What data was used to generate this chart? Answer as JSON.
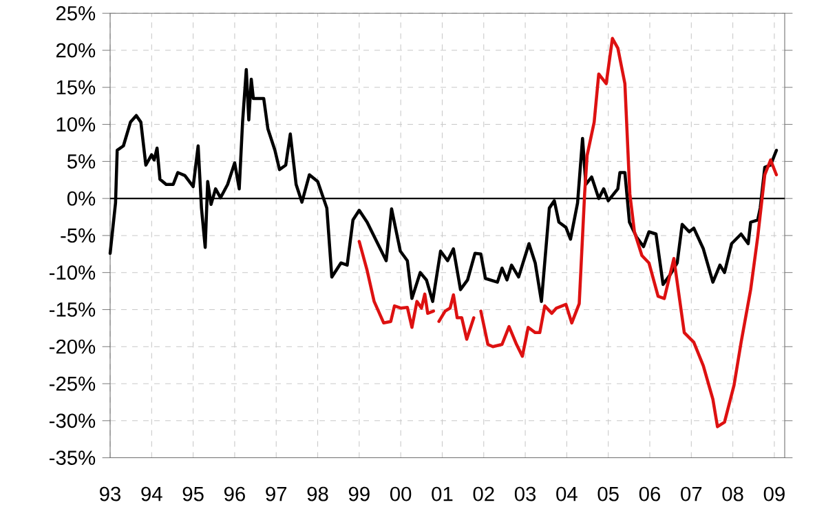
{
  "chart_data": {
    "type": "line",
    "xlim": [
      1993,
      2009.25
    ],
    "ylim": [
      -35,
      25
    ],
    "grid": true,
    "line_style": "solid",
    "xticks": [
      {
        "value": 1993,
        "label": "93"
      },
      {
        "value": 1994,
        "label": "94"
      },
      {
        "value": 1995,
        "label": "95"
      },
      {
        "value": 1996,
        "label": "96"
      },
      {
        "value": 1997,
        "label": "97"
      },
      {
        "value": 1998,
        "label": "98"
      },
      {
        "value": 1999,
        "label": "99"
      },
      {
        "value": 2000,
        "label": "00"
      },
      {
        "value": 2001,
        "label": "01"
      },
      {
        "value": 2002,
        "label": "02"
      },
      {
        "value": 2003,
        "label": "03"
      },
      {
        "value": 2004,
        "label": "04"
      },
      {
        "value": 2005,
        "label": "05"
      },
      {
        "value": 2006,
        "label": "06"
      },
      {
        "value": 2007,
        "label": "07"
      },
      {
        "value": 2008,
        "label": "08"
      },
      {
        "value": 2009,
        "label": "09"
      }
    ],
    "yticks": [
      {
        "value": -35,
        "label": "-35%"
      },
      {
        "value": -30,
        "label": "-30%"
      },
      {
        "value": -25,
        "label": "-25%"
      },
      {
        "value": -20,
        "label": "-20%"
      },
      {
        "value": -15,
        "label": "-15%"
      },
      {
        "value": -10,
        "label": "-10%"
      },
      {
        "value": -5,
        "label": "-5%"
      },
      {
        "value": 0,
        "label": "0%"
      },
      {
        "value": 5,
        "label": "5%"
      },
      {
        "value": 10,
        "label": "10%"
      },
      {
        "value": 15,
        "label": "15%"
      },
      {
        "value": 20,
        "label": "20%"
      },
      {
        "value": 25,
        "label": "25%"
      }
    ],
    "ref_lines": [
      {
        "axis": "y",
        "value": 0,
        "color": "#000000"
      }
    ],
    "series": [
      {
        "color": "#000000",
        "x": [
          1993.0,
          1993.13,
          1993.17,
          1993.32,
          1993.49,
          1993.63,
          1993.74,
          1993.86,
          1994.0,
          1994.06,
          1994.13,
          1994.2,
          1994.35,
          1994.52,
          1994.63,
          1994.8,
          1995.0,
          1995.12,
          1995.2,
          1995.29,
          1995.35,
          1995.43,
          1995.54,
          1995.66,
          1995.83,
          1996.0,
          1996.11,
          1996.19,
          1996.28,
          1996.34,
          1996.4,
          1996.45,
          1996.57,
          1996.7,
          1996.8,
          1996.97,
          1997.08,
          1997.23,
          1997.34,
          1997.48,
          1997.62,
          1997.8,
          1998.0,
          1998.22,
          1998.34,
          1998.56,
          1998.71,
          1998.85,
          1999.0,
          1999.19,
          1999.42,
          1999.65,
          1999.78,
          1999.99,
          2000.16,
          2000.27,
          2000.47,
          2000.62,
          2000.77,
          2000.96,
          2001.13,
          2001.27,
          2001.44,
          2001.61,
          2001.79,
          2001.93,
          2002.04,
          2002.33,
          2002.44,
          2002.56,
          2002.67,
          2002.84,
          2003.09,
          2003.24,
          2003.39,
          2003.58,
          2003.7,
          2003.81,
          2003.98,
          2004.09,
          2004.26,
          2004.38,
          2004.46,
          2004.6,
          2004.77,
          2004.89,
          2005.0,
          2005.23,
          2005.28,
          2005.4,
          2005.51,
          2005.68,
          2005.85,
          2005.98,
          2006.15,
          2006.32,
          2006.49,
          2006.66,
          2006.78,
          2006.95,
          2007.06,
          2007.29,
          2007.52,
          2007.69,
          2007.8,
          2007.97,
          2008.2,
          2008.37,
          2008.43,
          2008.6,
          2008.66,
          2008.77,
          2008.91,
          2009.05
        ],
        "values": [
          -7.4,
          -0.6,
          6.5,
          7.1,
          10.3,
          11.2,
          10.3,
          4.5,
          5.9,
          5.2,
          6.8,
          2.6,
          1.9,
          1.9,
          3.5,
          3.1,
          1.6,
          7.1,
          -1.3,
          -6.6,
          2.3,
          -0.8,
          1.3,
          0.1,
          1.9,
          4.8,
          1.3,
          10.3,
          17.4,
          10.6,
          16.1,
          13.5,
          13.5,
          13.5,
          9.4,
          6.5,
          3.9,
          4.5,
          8.7,
          1.9,
          -0.5,
          3.2,
          2.3,
          -1.3,
          -10.6,
          -8.7,
          -9.0,
          -2.9,
          -1.6,
          -3.2,
          -5.8,
          -8.4,
          -1.4,
          -7.1,
          -8.4,
          -13.5,
          -10.0,
          -11.0,
          -13.9,
          -7.1,
          -8.4,
          -6.8,
          -12.3,
          -11.0,
          -7.4,
          -7.5,
          -10.8,
          -11.3,
          -9.4,
          -11.0,
          -9.0,
          -10.6,
          -6.1,
          -8.7,
          -13.9,
          -1.3,
          -0.3,
          -3.2,
          -3.9,
          -5.5,
          -0.6,
          8.1,
          1.9,
          2.9,
          0.0,
          1.3,
          -0.3,
          1.3,
          3.5,
          3.5,
          -3.2,
          -5.2,
          -6.5,
          -4.5,
          -4.8,
          -11.6,
          -10.3,
          -8.7,
          -3.5,
          -4.5,
          -4.0,
          -6.8,
          -11.3,
          -9.0,
          -10.0,
          -6.1,
          -4.8,
          -6.1,
          -3.2,
          -2.9,
          -1.3,
          4.2,
          4.5,
          6.5
        ]
      },
      {
        "color": "#dd1111",
        "x": [
          1999.0,
          1999.19,
          1999.36,
          1999.59,
          1999.76,
          1999.85,
          2000.01,
          2000.16,
          2000.27,
          2000.39,
          2000.5,
          2000.58,
          2000.65,
          2000.79,
          2000.85,
          2000.92,
          2001.07,
          2001.19,
          2001.27,
          2001.36,
          2001.47,
          2001.59,
          2001.76,
          2001.85,
          2001.93,
          2002.1,
          2002.22,
          2002.44,
          2002.61,
          2002.79,
          2002.93,
          2003.07,
          2003.24,
          2003.35,
          2003.47,
          2003.64,
          2003.75,
          2003.98,
          2004.12,
          2004.3,
          2004.43,
          2004.49,
          2004.66,
          2004.77,
          2004.95,
          2005.1,
          2005.23,
          2005.4,
          2005.52,
          2005.63,
          2005.81,
          2005.98,
          2006.2,
          2006.35,
          2006.58,
          2006.83,
          2007.06,
          2007.29,
          2007.52,
          2007.63,
          2007.8,
          2008.03,
          2008.2,
          2008.43,
          2008.6,
          2008.77,
          2008.91,
          2009.05
        ],
        "values": [
          -5.8,
          -9.7,
          -13.9,
          -16.8,
          -16.6,
          -14.5,
          -14.8,
          -14.7,
          -17.4,
          -13.9,
          -14.8,
          -12.9,
          -15.5,
          -15.2,
          null,
          -16.6,
          -15.2,
          -14.8,
          -13.0,
          -16.1,
          -16.1,
          -19.0,
          -16.1,
          null,
          -15.2,
          -19.7,
          -20.0,
          -19.7,
          -17.3,
          -19.7,
          -21.3,
          -17.4,
          -18.1,
          -18.1,
          -14.5,
          -15.5,
          -14.8,
          -14.3,
          -16.8,
          -14.2,
          0.6,
          5.8,
          10.3,
          16.8,
          15.5,
          21.6,
          20.3,
          15.5,
          0.6,
          -4.5,
          -7.7,
          -8.7,
          -13.2,
          -13.5,
          -8.1,
          -18.1,
          -19.4,
          -22.6,
          -27.1,
          -30.8,
          -30.2,
          -25.2,
          -19.4,
          -12.3,
          -5.2,
          3.2,
          5.2,
          3.2
        ]
      }
    ]
  }
}
